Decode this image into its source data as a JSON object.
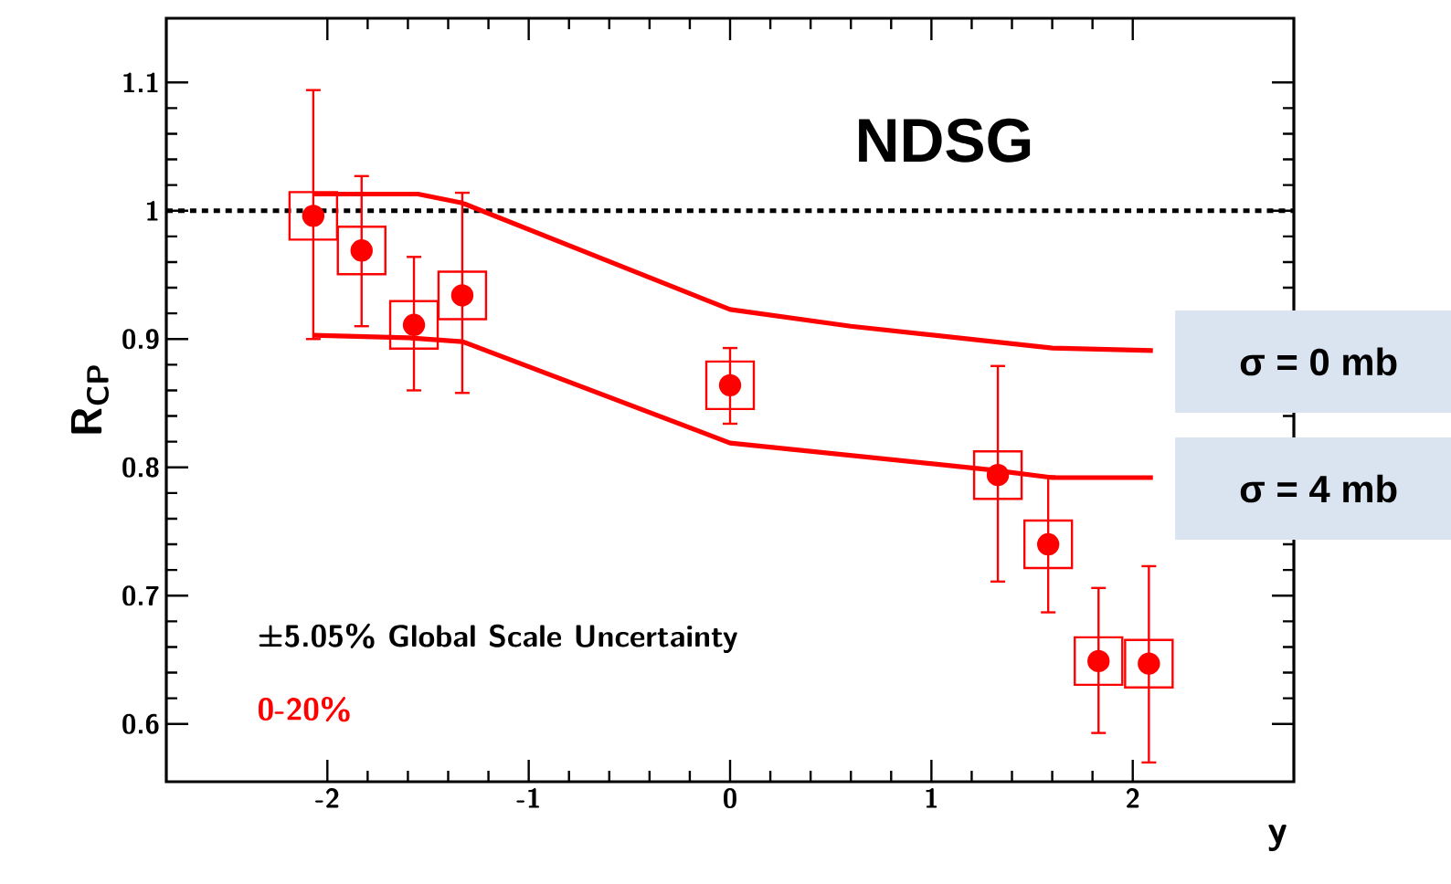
{
  "chart_data": {
    "type": "scatter",
    "xlabel": "y",
    "ylabel": "R$_{CP}$",
    "xlim": [
      -2.8,
      2.8
    ],
    "ylim": [
      0.555,
      1.15
    ],
    "xticks": [
      -2,
      -1,
      0,
      1,
      2
    ],
    "yticks": [
      0.6,
      0.7,
      0.8,
      0.9,
      1,
      1.1
    ],
    "x": [
      -2.07,
      -1.83,
      -1.57,
      -1.33,
      0.0,
      1.33,
      1.58,
      1.83,
      2.08
    ],
    "series": [
      {
        "type": "scatter",
        "color": "#ff0000",
        "marker": "circle",
        "values": [
          0.996,
          0.969,
          0.911,
          0.934,
          0.864,
          0.794,
          0.74,
          0.649,
          0.647
        ],
        "errors": [
          [
            0.9,
            1.094
          ],
          [
            0.91,
            1.027
          ],
          [
            0.86,
            0.964
          ],
          [
            0.858,
            1.014
          ],
          [
            0.834,
            0.893
          ],
          [
            0.711,
            0.879
          ],
          [
            0.687,
            0.793
          ],
          [
            0.593,
            0.706
          ],
          [
            0.57,
            0.723
          ]
        ]
      },
      {
        "type": "scatter",
        "color": "#ff0000",
        "marker": "square",
        "values": [
          0.996,
          0.969,
          0.911,
          0.934,
          0.864,
          0.794,
          0.74,
          0.649,
          0.647
        ]
      },
      {
        "type": "line",
        "name": "σ = 0 mb",
        "color": "#ff0000",
        "line_style": "solid",
        "x": [
          -2.07,
          -1.55,
          -1.33,
          0,
          0.6,
          1.6,
          2.1
        ],
        "values": [
          1.013,
          1.013,
          1.006,
          0.923,
          0.91,
          0.893,
          0.891
        ]
      },
      {
        "type": "line",
        "name": "σ = 4 mb",
        "color": "#ff0000",
        "line_style": "solid",
        "x": [
          -2.07,
          -1.6,
          -1.33,
          0,
          1.3,
          1.6,
          2.1
        ],
        "values": [
          0.903,
          0.901,
          0.898,
          0.819,
          0.798,
          0.792,
          0.792
        ]
      }
    ],
    "ref_lines": [
      {
        "axis": "y",
        "value": 1,
        "color": "#000000",
        "line_style": "dotted"
      }
    ],
    "annotations": [
      "NDSG",
      "±5.05% Global Scale Uncertainty",
      "0-20%"
    ],
    "grid": false
  }
}
